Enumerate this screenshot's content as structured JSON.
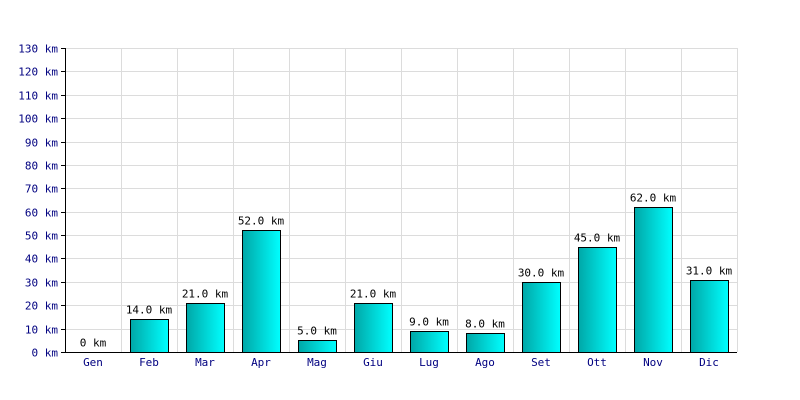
{
  "colors": {
    "background": "#ffffff",
    "grid": "#dcdcdc",
    "axis": "#000000",
    "axis_text": "#000080",
    "label_text": "#000000",
    "bar_dark": "#00a7a7",
    "bar_light": "#00ffff",
    "bar_stroke": "#000000"
  },
  "chart_data": {
    "type": "bar",
    "title": "",
    "xlabel": "",
    "ylabel": "",
    "categories": [
      "Gen",
      "Feb",
      "Mar",
      "Apr",
      "Mag",
      "Giu",
      "Lug",
      "Ago",
      "Set",
      "Ott",
      "Nov",
      "Dic"
    ],
    "values": [
      0,
      14,
      21,
      52,
      5,
      21,
      9,
      8,
      30,
      45,
      62,
      31
    ],
    "data_labels": [
      "0 km",
      "14.0 km",
      "21.0 km",
      "52.0 km",
      "5.0 km",
      "21.0 km",
      "9.0 km",
      "8.0 km",
      "30.0 km",
      "45.0 km",
      "62.0 km",
      "31.0 km"
    ],
    "ylim": [
      0,
      130
    ],
    "y_ticks": [
      0,
      10,
      20,
      30,
      40,
      50,
      60,
      70,
      80,
      90,
      100,
      110,
      120,
      130
    ],
    "y_tick_labels": [
      "0 km",
      "10 km",
      "20 km",
      "30 km",
      "40 km",
      "50 km",
      "60 km",
      "70 km",
      "80 km",
      "90 km",
      "100 km",
      "110 km",
      "120 km",
      "130 km"
    ],
    "grid": true,
    "legend": "none"
  }
}
